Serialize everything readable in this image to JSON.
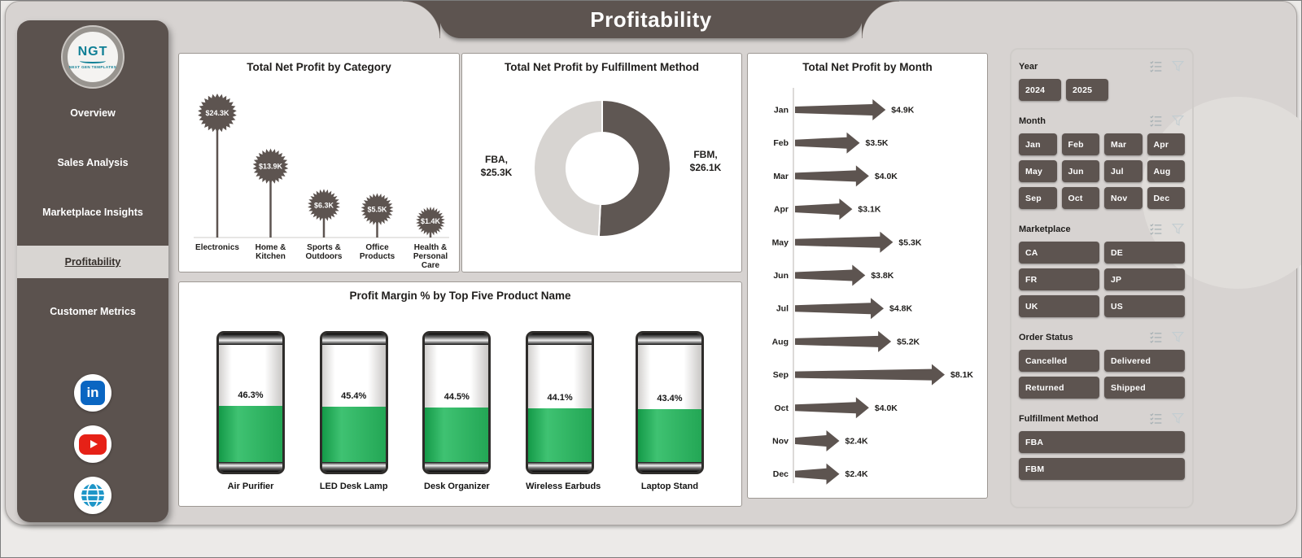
{
  "header": {
    "title": "Profitability"
  },
  "sidebar": {
    "logo": {
      "name": "NGT",
      "tagline": "NEXT GEN TEMPLATES"
    },
    "items": [
      {
        "label": "Overview",
        "active": false
      },
      {
        "label": "Sales Analysis",
        "active": false
      },
      {
        "label": "Marketplace Insights",
        "active": false
      },
      {
        "label": "Profitability",
        "active": true
      },
      {
        "label": "Customer Metrics",
        "active": false
      }
    ],
    "social": [
      {
        "name": "linkedin-icon",
        "glyph": "in",
        "color": "#0a66c2"
      },
      {
        "name": "youtube-icon",
        "color": "#e62117"
      },
      {
        "name": "globe-icon",
        "color": "#1e96c8"
      }
    ]
  },
  "chart_data": [
    {
      "type": "bar",
      "variant": "lollipop-star",
      "title": "Total Net Profit by Category",
      "categories": [
        "Electronics",
        "Home & Kitchen",
        "Sports & Outdoors",
        "Office Products",
        "Health & Personal Care"
      ],
      "category_lines": [
        [
          "Electronics"
        ],
        [
          "Home &",
          "Kitchen"
        ],
        [
          "Sports &",
          "Outdoors"
        ],
        [
          "Office",
          "Products"
        ],
        [
          "Health &",
          "Personal",
          "Care"
        ]
      ],
      "values": [
        24300,
        13900,
        6300,
        5500,
        1400
      ],
      "labels": [
        "$24.3K",
        "$13.9K",
        "$6.3K",
        "$5.5K",
        "$1.4K"
      ],
      "ylim": [
        0,
        26000
      ]
    },
    {
      "type": "pie",
      "variant": "donut",
      "title": "Total Net Profit by Fulfillment Method",
      "categories": [
        "FBA",
        "FBM"
      ],
      "values": [
        25300,
        26100
      ],
      "labels": [
        [
          "FBA,",
          "$25.3K"
        ],
        [
          "FBM,",
          "$26.1K"
        ]
      ],
      "colors": [
        "#d7d4d1",
        "#5f5753"
      ]
    },
    {
      "type": "bar",
      "variant": "arrow",
      "orientation": "horizontal",
      "title": "Total Net Profit by Month",
      "categories": [
        "Jan",
        "Feb",
        "Mar",
        "Apr",
        "May",
        "Jun",
        "Jul",
        "Aug",
        "Sep",
        "Oct",
        "Nov",
        "Dec"
      ],
      "values": [
        4900,
        3500,
        4000,
        3100,
        5300,
        3800,
        4800,
        5200,
        8100,
        4000,
        2400,
        2400
      ],
      "labels": [
        "$4.9K",
        "$3.5K",
        "$4.0K",
        "$3.1K",
        "$5.3K",
        "$3.8K",
        "$4.8K",
        "$5.2K",
        "$8.1K",
        "$4.0K",
        "$2.4K",
        "$2.4K"
      ],
      "xlim": [
        0,
        8500
      ]
    },
    {
      "type": "bar",
      "variant": "battery",
      "title": "Profit Margin % by Top Five Product Name",
      "categories": [
        "Air Purifier",
        "LED Desk Lamp",
        "Desk Organizer",
        "Wireless Earbuds",
        "Laptop Stand"
      ],
      "values": [
        46.3,
        45.4,
        44.5,
        44.1,
        43.4
      ],
      "labels": [
        "46.3%",
        "45.4%",
        "44.5%",
        "44.1%",
        "43.4%"
      ],
      "ylim": [
        0,
        100
      ]
    }
  ],
  "filters": [
    {
      "label": "Year",
      "columns": 2,
      "compact": true,
      "options": [
        "2024",
        "2025"
      ]
    },
    {
      "label": "Month",
      "columns": 4,
      "options": [
        "Jan",
        "Feb",
        "Mar",
        "Apr",
        "May",
        "Jun",
        "Jul",
        "Aug",
        "Sep",
        "Oct",
        "Nov",
        "Dec"
      ]
    },
    {
      "label": "Marketplace",
      "columns": 2,
      "options": [
        "CA",
        "DE",
        "FR",
        "JP",
        "UK",
        "US"
      ]
    },
    {
      "label": "Order Status",
      "columns": 2,
      "options": [
        "Cancelled",
        "Delivered",
        "Returned",
        "Shipped"
      ]
    },
    {
      "label": "Fulfillment Method",
      "columns": 1,
      "options": [
        "FBA",
        "FBM"
      ]
    }
  ],
  "colors": {
    "accent": "#5d5450",
    "green": "#2fae5e",
    "slice_light": "#d7d4d1",
    "page_bg": "#d7d3d1"
  }
}
